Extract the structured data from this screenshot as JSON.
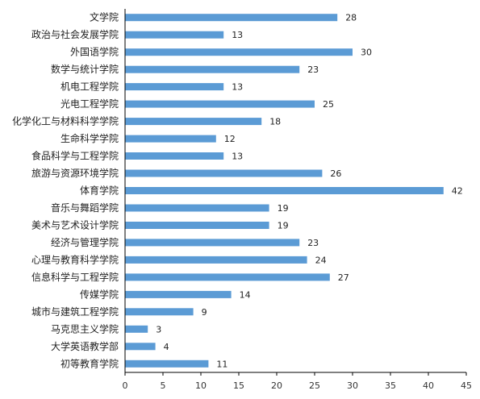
{
  "chart_data": {
    "type": "bar",
    "orientation": "horizontal",
    "categories": [
      "文学院",
      "政治与社会发展学院",
      "外国语学院",
      "数学与统计学院",
      "机电工程学院",
      "光电工程学院",
      "化学化工与材料科学学院",
      "生命科学学院",
      "食品科学与工程学院",
      "旅游与资源环境学院",
      "体育学院",
      "音乐与舞蹈学院",
      "美术与艺术设计学院",
      "经济与管理学院",
      "心理与教育科学学院",
      "信息科学与工程学院",
      "传媒学院",
      "城市与建筑工程学院",
      "马克思主义学院",
      "大学英语教学部",
      "初等教育学院"
    ],
    "values": [
      28,
      13,
      30,
      23,
      13,
      25,
      18,
      12,
      13,
      26,
      42,
      19,
      19,
      23,
      24,
      27,
      14,
      9,
      3,
      4,
      11
    ],
    "xlim": [
      0,
      45
    ],
    "xticks": [
      0,
      5,
      10,
      15,
      20,
      25,
      30,
      35,
      40,
      45
    ],
    "title": "",
    "xlabel": "",
    "ylabel": "",
    "grid": false,
    "data_labels": true,
    "colors": {
      "bar": "#5B9BD5",
      "axis": "#000000"
    }
  }
}
